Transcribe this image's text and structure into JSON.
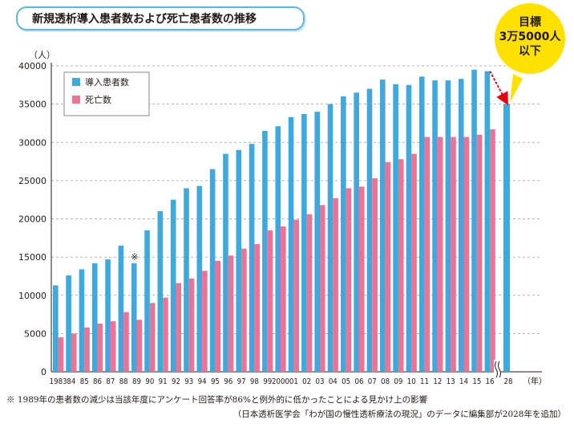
{
  "title": "新規透析導入患者数および死亡患者数の推移",
  "note": "※ 1989年の患者数の減少は当該年度にアンケート回答率が86%と例外的に低かったことによる見かけ上の影響",
  "source": "（日本透析医学会「わが国の慢性透析療法の現況」のデータに編集部が2028年を追加）",
  "callout": {
    "line1": "目標",
    "line2": "3万5000人",
    "line3": "以下"
  },
  "chart_data": {
    "type": "bar",
    "yunit": "（人）",
    "xunit": "（年）",
    "ylim": [
      0,
      40000
    ],
    "yticks": [
      0,
      5000,
      10000,
      15000,
      20000,
      25000,
      30000,
      35000,
      40000
    ],
    "grid": true,
    "legend_position": "top-left",
    "categories": [
      "1983",
      "84",
      "85",
      "86",
      "87",
      "88",
      "89",
      "90",
      "91",
      "92",
      "93",
      "94",
      "95",
      "96",
      "97",
      "98",
      "99",
      "2000",
      "01",
      "02",
      "03",
      "04",
      "05",
      "06",
      "07",
      "08",
      "09",
      "10",
      "11",
      "12",
      "13",
      "14",
      "15",
      "16",
      "28"
    ],
    "series": [
      {
        "name": "導入患者数",
        "color": "#3fa9dd",
        "values": [
          11300,
          12600,
          13400,
          14200,
          14700,
          16500,
          14200,
          18500,
          21000,
          22500,
          24000,
          24300,
          26500,
          28500,
          29000,
          29800,
          31500,
          32100,
          33300,
          33700,
          34000,
          35000,
          36000,
          36500,
          37000,
          38200,
          37600,
          37500,
          38600,
          38100,
          38100,
          38300,
          39500,
          39300,
          35000
        ]
      },
      {
        "name": "死亡数",
        "color": "#ec7296",
        "values": [
          4500,
          5000,
          5800,
          6300,
          6600,
          7800,
          6800,
          9000,
          9700,
          11600,
          12200,
          13200,
          14500,
          15200,
          16100,
          16700,
          18500,
          19000,
          19900,
          20600,
          21800,
          22700,
          24000,
          24200,
          25300,
          27400,
          27800,
          28500,
          30700,
          30700,
          30700,
          30700,
          31000,
          31700,
          null
        ]
      }
    ],
    "annotations": [
      {
        "category": "89",
        "text": "※"
      }
    ],
    "target_arrow": {
      "from": "16",
      "to": "28"
    }
  }
}
